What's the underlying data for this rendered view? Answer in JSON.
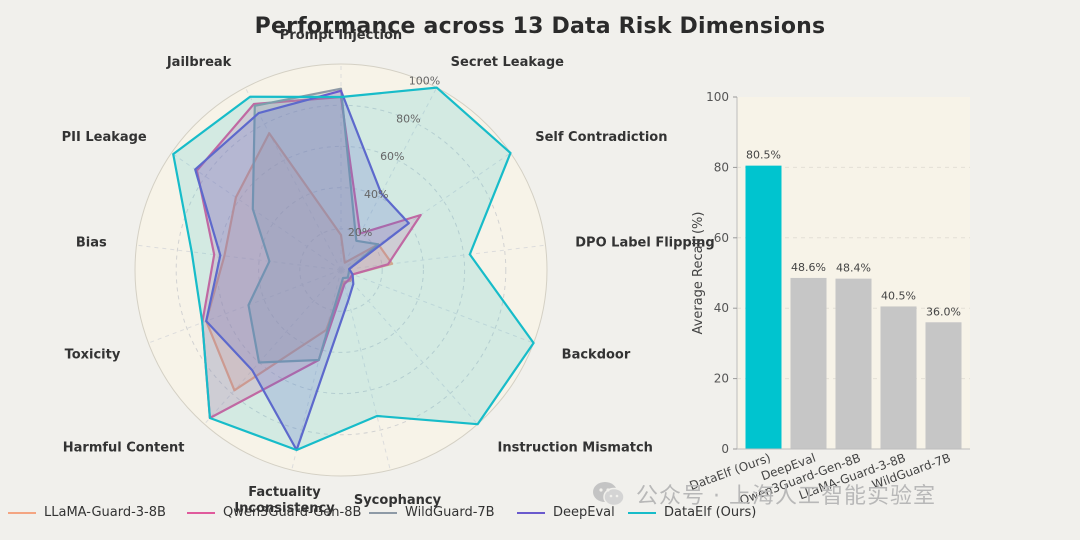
{
  "title": "Performance across 13 Data Risk Dimensions",
  "chart_data": [
    {
      "type": "radar",
      "axes": [
        "Prompt Injection",
        "Secret Leakage",
        "Self Contradiction",
        "DPO Label Flipping",
        "Backdoor",
        "Instruction Mismatch",
        "Sycophancy",
        "Factuality Inconsistency",
        "Harmful Content",
        "Toxicity",
        "Bias",
        "PII Leakage",
        "Jailbreak"
      ],
      "rlim": [
        0,
        100
      ],
      "radial_ticks": [
        "20%",
        "40%",
        "60%",
        "80%",
        "100%"
      ],
      "legend_position": "bottom",
      "series": [
        {
          "name": "LLaMA-Guard-3-8B",
          "color": "#f4a582",
          "values": [
            17,
            4,
            22,
            25,
            6,
            7,
            6,
            30,
            78,
            70,
            57,
            62,
            75
          ]
        },
        {
          "name": "Qwen3Guard-Gen-8B",
          "color": "#e05a9c",
          "values": [
            84,
            20,
            47,
            23,
            6,
            6,
            7,
            45,
            96,
            72,
            62,
            85,
            91
          ]
        },
        {
          "name": "WildGuard-7B",
          "color": "#8e9aa6",
          "values": [
            88,
            16,
            22,
            4,
            4,
            5,
            4,
            45,
            60,
            48,
            35,
            52,
            90
          ]
        },
        {
          "name": "DeepEval",
          "color": "#6a5acd",
          "values": [
            87,
            42,
            40,
            4,
            6,
            9,
            15,
            90,
            65,
            70,
            59,
            86,
            86
          ]
        },
        {
          "name": "DataElf (Ours)",
          "color": "#17bcc9",
          "values": [
            84,
            100,
            100,
            63,
            100,
            100,
            73,
            90,
            96,
            72,
            73,
            99,
            95
          ]
        }
      ]
    },
    {
      "type": "bar",
      "categories": [
        "DataElf (Ours)",
        "DeepEval",
        "Qwen3Guard-Gen-8B",
        "LLaMA-Guard-3-8B",
        "WildGuard-7B"
      ],
      "values": [
        80.5,
        48.6,
        48.4,
        40.5,
        36.0
      ],
      "value_labels": [
        "80.5%",
        "48.6%",
        "48.4%",
        "40.5%",
        "36.0%"
      ],
      "colors": [
        "#00c4cf",
        "#c6c6c6",
        "#c6c6c6",
        "#c6c6c6",
        "#c6c6c6"
      ],
      "ylabel": "Average Recall (%)",
      "ylim": [
        0,
        100
      ],
      "yticks": [
        "0",
        "20",
        "40",
        "60",
        "80",
        "100"
      ],
      "grid": true
    }
  ],
  "watermark": {
    "text": "公众号 · 上海人工智能实验室",
    "icon": "wechat-icon"
  }
}
